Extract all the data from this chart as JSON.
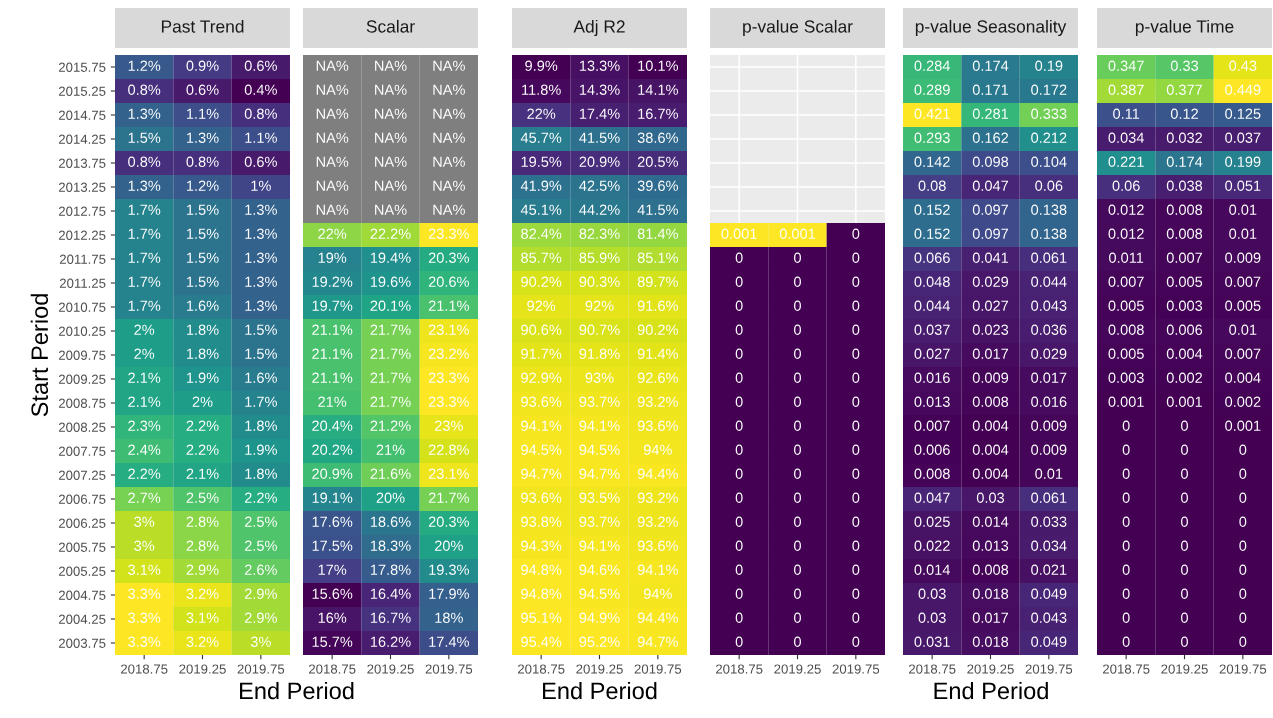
{
  "chart_data": [
    {
      "type": "heatmap",
      "title": "Past Trend",
      "xlabel": "End Period",
      "ylabel": "Start Period",
      "grid": true,
      "categories": [
        "2018.75",
        "2019.25",
        "2019.75"
      ],
      "y_categories": [
        "2015.75",
        "2015.25",
        "2014.75",
        "2014.25",
        "2013.75",
        "2013.25",
        "2012.75",
        "2012.25",
        "2011.75",
        "2011.25",
        "2010.75",
        "2010.25",
        "2009.75",
        "2009.25",
        "2008.75",
        "2008.25",
        "2007.75",
        "2007.25",
        "2006.75",
        "2006.25",
        "2005.75",
        "2005.25",
        "2004.75",
        "2004.25",
        "2003.75"
      ],
      "cells": [
        [
          1.2,
          0.9,
          0.6
        ],
        [
          0.8,
          0.6,
          0.4
        ],
        [
          1.3,
          1.1,
          0.8
        ],
        [
          1.5,
          1.3,
          1.1
        ],
        [
          0.8,
          0.8,
          0.6
        ],
        [
          1.3,
          1.2,
          1
        ],
        [
          1.7,
          1.5,
          1.3
        ],
        [
          1.7,
          1.5,
          1.3
        ],
        [
          1.7,
          1.5,
          1.3
        ],
        [
          1.7,
          1.5,
          1.3
        ],
        [
          1.7,
          1.6,
          1.3
        ],
        [
          2,
          1.8,
          1.5
        ],
        [
          2,
          1.8,
          1.5
        ],
        [
          2.1,
          1.9,
          1.6
        ],
        [
          2.1,
          2,
          1.7
        ],
        [
          2.3,
          2.2,
          1.8
        ],
        [
          2.4,
          2.2,
          1.9
        ],
        [
          2.2,
          2.1,
          1.8
        ],
        [
          2.7,
          2.5,
          2.2
        ],
        [
          3,
          2.8,
          2.5
        ],
        [
          3,
          2.8,
          2.5
        ],
        [
          3.1,
          2.9,
          2.6
        ],
        [
          3.3,
          3.2,
          2.9
        ],
        [
          3.3,
          3.1,
          2.9
        ],
        [
          3.3,
          3.2,
          3
        ]
      ],
      "cell_labels": [
        [
          "1.2%",
          "0.9%",
          "0.6%"
        ],
        [
          "0.8%",
          "0.6%",
          "0.4%"
        ],
        [
          "1.3%",
          "1.1%",
          "0.8%"
        ],
        [
          "1.5%",
          "1.3%",
          "1.1%"
        ],
        [
          "0.8%",
          "0.8%",
          "0.6%"
        ],
        [
          "1.3%",
          "1.2%",
          "1%"
        ],
        [
          "1.7%",
          "1.5%",
          "1.3%"
        ],
        [
          "1.7%",
          "1.5%",
          "1.3%"
        ],
        [
          "1.7%",
          "1.5%",
          "1.3%"
        ],
        [
          "1.7%",
          "1.5%",
          "1.3%"
        ],
        [
          "1.7%",
          "1.6%",
          "1.3%"
        ],
        [
          "2%",
          "1.8%",
          "1.5%"
        ],
        [
          "2%",
          "1.8%",
          "1.5%"
        ],
        [
          "2.1%",
          "1.9%",
          "1.6%"
        ],
        [
          "2.1%",
          "2%",
          "1.7%"
        ],
        [
          "2.3%",
          "2.2%",
          "1.8%"
        ],
        [
          "2.4%",
          "2.2%",
          "1.9%"
        ],
        [
          "2.2%",
          "2.1%",
          "1.8%"
        ],
        [
          "2.7%",
          "2.5%",
          "2.2%"
        ],
        [
          "3%",
          "2.8%",
          "2.5%"
        ],
        [
          "3%",
          "2.8%",
          "2.5%"
        ],
        [
          "3.1%",
          "2.9%",
          "2.6%"
        ],
        [
          "3.3%",
          "3.2%",
          "2.9%"
        ],
        [
          "3.3%",
          "3.1%",
          "2.9%"
        ],
        [
          "3.3%",
          "3.2%",
          "3%"
        ]
      ]
    },
    {
      "type": "heatmap",
      "title": "Scalar",
      "tick_labels": "x",
      "grid": true,
      "categories": [
        "2018.75",
        "2019.25",
        "2019.75"
      ],
      "y_categories": [
        "2015.75",
        "2015.25",
        "2014.75",
        "2014.25",
        "2013.75",
        "2013.25",
        "2012.75",
        "2012.25",
        "2011.75",
        "2011.25",
        "2010.75",
        "2010.25",
        "2009.75",
        "2009.25",
        "2008.75",
        "2008.25",
        "2007.75",
        "2007.25",
        "2006.75",
        "2006.25",
        "2005.75",
        "2005.25",
        "2004.75",
        "2004.25",
        "2003.75"
      ],
      "cells": [
        [
          null,
          null,
          null
        ],
        [
          null,
          null,
          null
        ],
        [
          null,
          null,
          null
        ],
        [
          null,
          null,
          null
        ],
        [
          null,
          null,
          null
        ],
        [
          null,
          null,
          null
        ],
        [
          null,
          null,
          null
        ],
        [
          22,
          22.2,
          23.3
        ],
        [
          19,
          19.4,
          20.3
        ],
        [
          19.2,
          19.6,
          20.6
        ],
        [
          19.7,
          20.1,
          21.1
        ],
        [
          21.1,
          21.7,
          23.1
        ],
        [
          21.1,
          21.7,
          23.2
        ],
        [
          21.1,
          21.7,
          23.3
        ],
        [
          21,
          21.7,
          23.3
        ],
        [
          20.4,
          21.2,
          23
        ],
        [
          20.2,
          21,
          22.8
        ],
        [
          20.9,
          21.6,
          23.1
        ],
        [
          19.1,
          20,
          21.7
        ],
        [
          17.6,
          18.6,
          20.3
        ],
        [
          17.5,
          18.3,
          20
        ],
        [
          17,
          17.8,
          19.3
        ],
        [
          15.6,
          16.4,
          17.9
        ],
        [
          16,
          16.7,
          18
        ],
        [
          15.7,
          16.2,
          17.4
        ]
      ],
      "cell_labels": [
        [
          "NA%",
          "NA%",
          "NA%"
        ],
        [
          "NA%",
          "NA%",
          "NA%"
        ],
        [
          "NA%",
          "NA%",
          "NA%"
        ],
        [
          "NA%",
          "NA%",
          "NA%"
        ],
        [
          "NA%",
          "NA%",
          "NA%"
        ],
        [
          "NA%",
          "NA%",
          "NA%"
        ],
        [
          "NA%",
          "NA%",
          "NA%"
        ],
        [
          "22%",
          "22.2%",
          "23.3%"
        ],
        [
          "19%",
          "19.4%",
          "20.3%"
        ],
        [
          "19.2%",
          "19.6%",
          "20.6%"
        ],
        [
          "19.7%",
          "20.1%",
          "21.1%"
        ],
        [
          "21.1%",
          "21.7%",
          "23.1%"
        ],
        [
          "21.1%",
          "21.7%",
          "23.2%"
        ],
        [
          "21.1%",
          "21.7%",
          "23.3%"
        ],
        [
          "21%",
          "21.7%",
          "23.3%"
        ],
        [
          "20.4%",
          "21.2%",
          "23%"
        ],
        [
          "20.2%",
          "21%",
          "22.8%"
        ],
        [
          "20.9%",
          "21.6%",
          "23.1%"
        ],
        [
          "19.1%",
          "20%",
          "21.7%"
        ],
        [
          "17.6%",
          "18.6%",
          "20.3%"
        ],
        [
          "17.5%",
          "18.3%",
          "20%"
        ],
        [
          "17%",
          "17.8%",
          "19.3%"
        ],
        [
          "15.6%",
          "16.4%",
          "17.9%"
        ],
        [
          "16%",
          "16.7%",
          "18%"
        ],
        [
          "15.7%",
          "16.2%",
          "17.4%"
        ]
      ]
    },
    {
      "type": "heatmap",
      "title": "Adj R2",
      "xlabel": "End Period",
      "tick_labels": "x",
      "grid": true,
      "categories": [
        "2018.75",
        "2019.25",
        "2019.75"
      ],
      "y_categories": [
        "2015.75",
        "2015.25",
        "2014.75",
        "2014.25",
        "2013.75",
        "2013.25",
        "2012.75",
        "2012.25",
        "2011.75",
        "2011.25",
        "2010.75",
        "2010.25",
        "2009.75",
        "2009.25",
        "2008.75",
        "2008.25",
        "2007.75",
        "2007.25",
        "2006.75",
        "2006.25",
        "2005.75",
        "2005.25",
        "2004.75",
        "2004.25",
        "2003.75"
      ],
      "cells": [
        [
          9.9,
          13.3,
          10.1
        ],
        [
          11.8,
          14.3,
          14.1
        ],
        [
          22,
          17.4,
          16.7
        ],
        [
          45.7,
          41.5,
          38.6
        ],
        [
          19.5,
          20.9,
          20.5
        ],
        [
          41.9,
          42.5,
          39.6
        ],
        [
          45.1,
          44.2,
          41.5
        ],
        [
          82.4,
          82.3,
          81.4
        ],
        [
          85.7,
          85.9,
          85.1
        ],
        [
          90.2,
          90.3,
          89.7
        ],
        [
          92,
          92,
          91.6
        ],
        [
          90.6,
          90.7,
          90.2
        ],
        [
          91.7,
          91.8,
          91.4
        ],
        [
          92.9,
          93,
          92.6
        ],
        [
          93.6,
          93.7,
          93.2
        ],
        [
          94.1,
          94.1,
          93.6
        ],
        [
          94.5,
          94.5,
          94
        ],
        [
          94.7,
          94.7,
          94.4
        ],
        [
          93.6,
          93.5,
          93.2
        ],
        [
          93.8,
          93.7,
          93.2
        ],
        [
          94.3,
          94.1,
          93.6
        ],
        [
          94.8,
          94.6,
          94.1
        ],
        [
          94.8,
          94.5,
          94
        ],
        [
          95.1,
          94.9,
          94.4
        ],
        [
          95.4,
          95.2,
          94.7
        ]
      ],
      "cell_labels": [
        [
          "9.9%",
          "13.3%",
          "10.1%"
        ],
        [
          "11.8%",
          "14.3%",
          "14.1%"
        ],
        [
          "22%",
          "17.4%",
          "16.7%"
        ],
        [
          "45.7%",
          "41.5%",
          "38.6%"
        ],
        [
          "19.5%",
          "20.9%",
          "20.5%"
        ],
        [
          "41.9%",
          "42.5%",
          "39.6%"
        ],
        [
          "45.1%",
          "44.2%",
          "41.5%"
        ],
        [
          "82.4%",
          "82.3%",
          "81.4%"
        ],
        [
          "85.7%",
          "85.9%",
          "85.1%"
        ],
        [
          "90.2%",
          "90.3%",
          "89.7%"
        ],
        [
          "92%",
          "92%",
          "91.6%"
        ],
        [
          "90.6%",
          "90.7%",
          "90.2%"
        ],
        [
          "91.7%",
          "91.8%",
          "91.4%"
        ],
        [
          "92.9%",
          "93%",
          "92.6%"
        ],
        [
          "93.6%",
          "93.7%",
          "93.2%"
        ],
        [
          "94.1%",
          "94.1%",
          "93.6%"
        ],
        [
          "94.5%",
          "94.5%",
          "94%"
        ],
        [
          "94.7%",
          "94.7%",
          "94.4%"
        ],
        [
          "93.6%",
          "93.5%",
          "93.2%"
        ],
        [
          "93.8%",
          "93.7%",
          "93.2%"
        ],
        [
          "94.3%",
          "94.1%",
          "93.6%"
        ],
        [
          "94.8%",
          "94.6%",
          "94.1%"
        ],
        [
          "94.8%",
          "94.5%",
          "94%"
        ],
        [
          "95.1%",
          "94.9%",
          "94.4%"
        ],
        [
          "95.4%",
          "95.2%",
          "94.7%"
        ]
      ]
    },
    {
      "type": "heatmap",
      "title": "p-value Scalar",
      "tick_labels": "x",
      "grid": true,
      "data_labels": true,
      "categories": [
        "2018.75",
        "2019.25",
        "2019.75"
      ],
      "y_categories": [
        "2015.75",
        "2015.25",
        "2014.75",
        "2014.25",
        "2013.75",
        "2013.25",
        "2012.75",
        "2012.25",
        "2011.75",
        "2011.25",
        "2010.75",
        "2010.25",
        "2009.75",
        "2009.25",
        "2008.75",
        "2008.25",
        "2007.75",
        "2007.25",
        "2006.75",
        "2006.25",
        "2005.75",
        "2005.25",
        "2004.75",
        "2004.25",
        "2003.75"
      ],
      "cells": [
        [
          null,
          null,
          null
        ],
        [
          null,
          null,
          null
        ],
        [
          null,
          null,
          null
        ],
        [
          null,
          null,
          null
        ],
        [
          null,
          null,
          null
        ],
        [
          null,
          null,
          null
        ],
        [
          null,
          null,
          null
        ],
        [
          0.001,
          0.001,
          0
        ],
        [
          0,
          0,
          0
        ],
        [
          0,
          0,
          0
        ],
        [
          0,
          0,
          0
        ],
        [
          0,
          0,
          0
        ],
        [
          0,
          0,
          0
        ],
        [
          0,
          0,
          0
        ],
        [
          0,
          0,
          0
        ],
        [
          0,
          0,
          0
        ],
        [
          0,
          0,
          0
        ],
        [
          0,
          0,
          0
        ],
        [
          0,
          0,
          0
        ],
        [
          0,
          0,
          0
        ],
        [
          0,
          0,
          0
        ],
        [
          0,
          0,
          0
        ],
        [
          0,
          0,
          0
        ],
        [
          0,
          0,
          0
        ],
        [
          0,
          0,
          0
        ]
      ]
    },
    {
      "type": "heatmap",
      "title": "p-value Seasonality",
      "xlabel": "End Period",
      "tick_labels": "x",
      "grid": true,
      "data_labels": true,
      "categories": [
        "2018.75",
        "2019.25",
        "2019.75"
      ],
      "y_categories": [
        "2015.75",
        "2015.25",
        "2014.75",
        "2014.25",
        "2013.75",
        "2013.25",
        "2012.75",
        "2012.25",
        "2011.75",
        "2011.25",
        "2010.75",
        "2010.25",
        "2009.75",
        "2009.25",
        "2008.75",
        "2008.25",
        "2007.75",
        "2007.25",
        "2006.75",
        "2006.25",
        "2005.75",
        "2005.25",
        "2004.75",
        "2004.25",
        "2003.75"
      ],
      "cells": [
        [
          0.284,
          0.174,
          0.19
        ],
        [
          0.289,
          0.171,
          0.172
        ],
        [
          0.421,
          0.281,
          0.333
        ],
        [
          0.293,
          0.162,
          0.212
        ],
        [
          0.142,
          0.098,
          0.104
        ],
        [
          0.08,
          0.047,
          0.06
        ],
        [
          0.152,
          0.097,
          0.138
        ],
        [
          0.152,
          0.097,
          0.138
        ],
        [
          0.066,
          0.041,
          0.061
        ],
        [
          0.048,
          0.029,
          0.044
        ],
        [
          0.044,
          0.027,
          0.043
        ],
        [
          0.037,
          0.023,
          0.036
        ],
        [
          0.027,
          0.017,
          0.029
        ],
        [
          0.016,
          0.009,
          0.017
        ],
        [
          0.013,
          0.008,
          0.016
        ],
        [
          0.007,
          0.004,
          0.009
        ],
        [
          0.006,
          0.004,
          0.009
        ],
        [
          0.008,
          0.004,
          0.01
        ],
        [
          0.047,
          0.03,
          0.061
        ],
        [
          0.025,
          0.014,
          0.033
        ],
        [
          0.022,
          0.013,
          0.034
        ],
        [
          0.014,
          0.008,
          0.021
        ],
        [
          0.03,
          0.018,
          0.049
        ],
        [
          0.03,
          0.017,
          0.043
        ],
        [
          0.031,
          0.018,
          0.049
        ]
      ]
    },
    {
      "type": "heatmap",
      "title": "p-value Time",
      "tick_labels": "x",
      "grid": true,
      "data_labels": true,
      "categories": [
        "2018.75",
        "2019.25",
        "2019.75"
      ],
      "y_categories": [
        "2015.75",
        "2015.25",
        "2014.75",
        "2014.25",
        "2013.75",
        "2013.25",
        "2012.75",
        "2012.25",
        "2011.75",
        "2011.25",
        "2010.75",
        "2010.25",
        "2009.75",
        "2009.25",
        "2008.75",
        "2008.25",
        "2007.75",
        "2007.25",
        "2006.75",
        "2006.25",
        "2005.75",
        "2005.25",
        "2004.75",
        "2004.25",
        "2003.75"
      ],
      "cells": [
        [
          0.347,
          0.33,
          0.43
        ],
        [
          0.387,
          0.377,
          0.449
        ],
        [
          0.11,
          0.12,
          0.125
        ],
        [
          0.034,
          0.032,
          0.037
        ],
        [
          0.221,
          0.174,
          0.199
        ],
        [
          0.06,
          0.038,
          0.051
        ],
        [
          0.012,
          0.008,
          0.01
        ],
        [
          0.012,
          0.008,
          0.01
        ],
        [
          0.011,
          0.007,
          0.009
        ],
        [
          0.007,
          0.005,
          0.007
        ],
        [
          0.005,
          0.003,
          0.005
        ],
        [
          0.008,
          0.006,
          0.01
        ],
        [
          0.005,
          0.004,
          0.007
        ],
        [
          0.003,
          0.002,
          0.004
        ],
        [
          0.001,
          0.001,
          0.002
        ],
        [
          0,
          0,
          0.001
        ],
        [
          0,
          0,
          0
        ],
        [
          0,
          0,
          0
        ],
        [
          0,
          0,
          0
        ],
        [
          0,
          0,
          0
        ],
        [
          0,
          0,
          0
        ],
        [
          0,
          0,
          0
        ],
        [
          0,
          0,
          0
        ],
        [
          0,
          0,
          0
        ],
        [
          0,
          0,
          0
        ]
      ]
    }
  ]
}
